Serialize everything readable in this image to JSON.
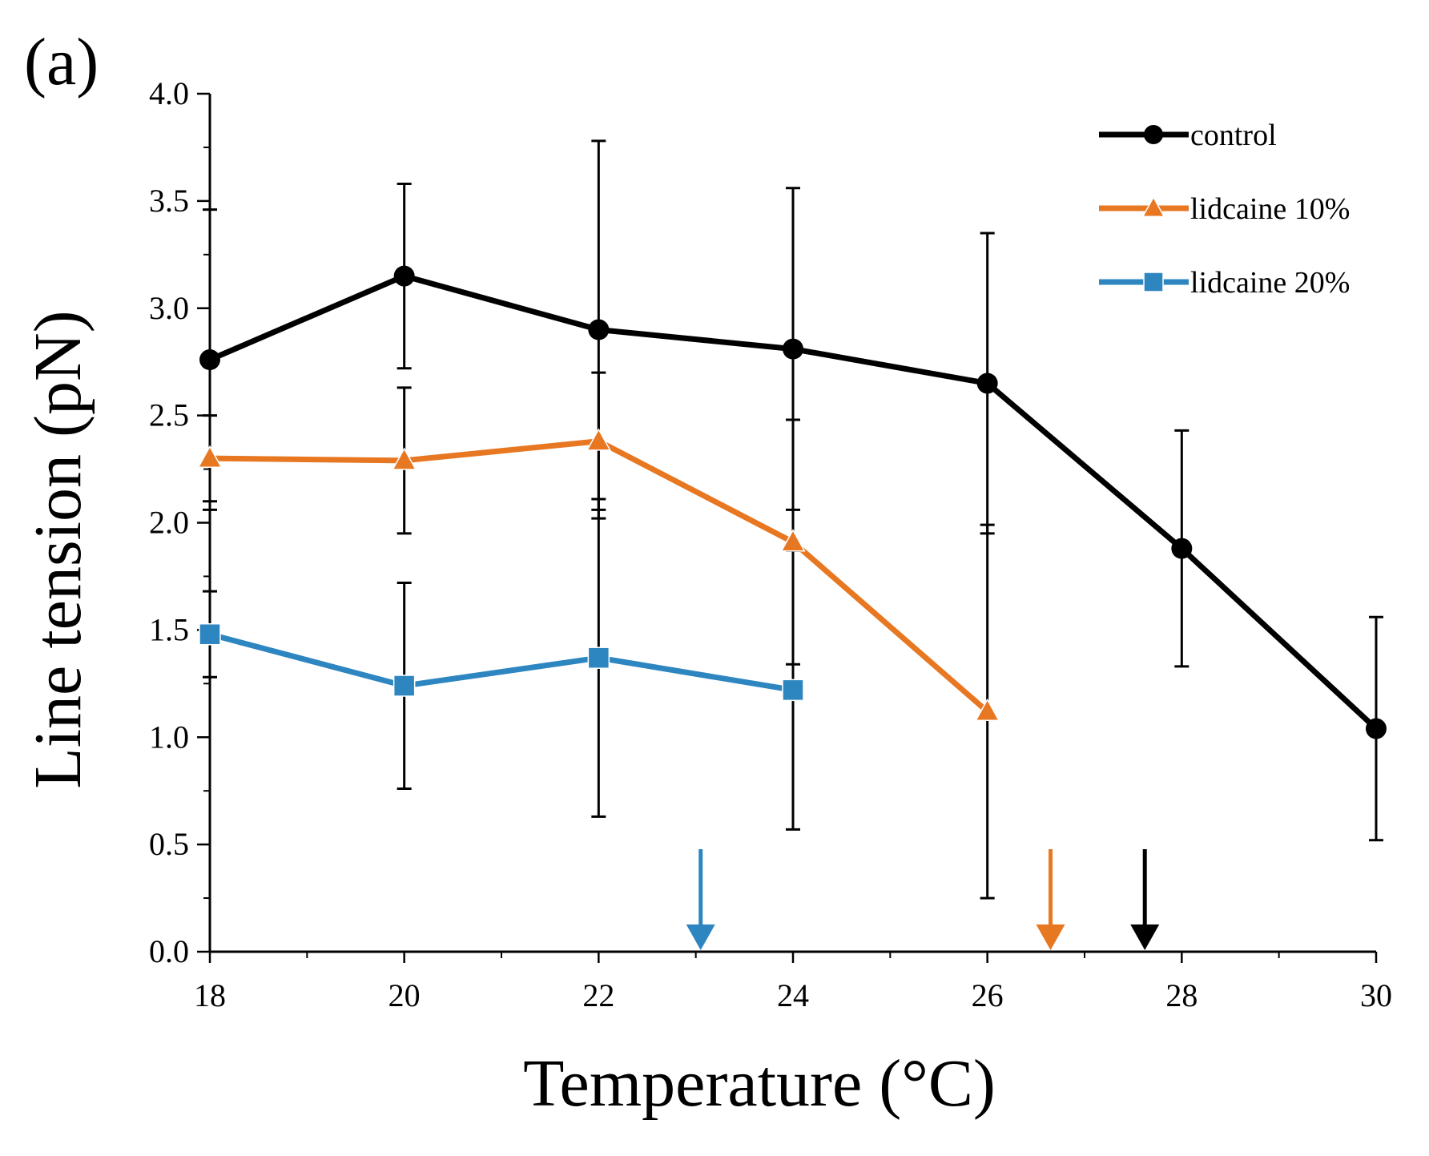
{
  "chart_data": {
    "type": "line",
    "panel_label": "(a)",
    "title": "",
    "xlabel": "Temperature (°C)",
    "ylabel": "Line tension (pN)",
    "xlim": [
      18,
      30
    ],
    "ylim": [
      0,
      4
    ],
    "x_ticks": [
      18,
      20,
      22,
      24,
      26,
      28,
      30
    ],
    "x_tick_labels": [
      "18",
      "20",
      "22",
      "24",
      "26",
      "28",
      "30"
    ],
    "y_ticks": [
      0,
      0.5,
      1,
      1.5,
      2,
      2.5,
      3,
      3.5,
      4
    ],
    "y_tick_labels": [
      "0.0",
      "0.5",
      "1.0",
      "1.5",
      "2.0",
      "2.5",
      "3.0",
      "3.5",
      "4.0"
    ],
    "grid": false,
    "legend_position": "top-right",
    "series": [
      {
        "name": "control",
        "color": "#000000",
        "marker": "circle",
        "x": [
          18,
          20,
          22,
          24,
          26,
          28,
          30
        ],
        "y": [
          2.76,
          3.15,
          2.9,
          2.81,
          2.65,
          1.88,
          1.04
        ],
        "error": [
          0.7,
          0.43,
          0.88,
          0.75,
          0.7,
          0.55,
          0.52
        ]
      },
      {
        "name": "lidcaine 10%",
        "color": "#E87722",
        "marker": "triangle",
        "x": [
          18,
          20,
          22,
          24,
          26
        ],
        "y": [
          2.3,
          2.29,
          2.38,
          1.91,
          1.12
        ],
        "error": [
          0.2,
          0.34,
          0.32,
          0.57,
          0.87
        ]
      },
      {
        "name": "lidcaine 20%",
        "color": "#2E86C1",
        "marker": "square",
        "x": [
          18,
          20,
          22,
          24
        ],
        "y": [
          1.48,
          1.24,
          1.37,
          1.22
        ],
        "error": [
          0.2,
          0.48,
          0.74,
          0.65
        ]
      }
    ],
    "annotations": [
      {
        "type": "arrow",
        "x": 23.05,
        "color": "#2E86C1",
        "points_to": "lidcaine 20%"
      },
      {
        "type": "arrow",
        "x": 26.65,
        "color": "#E87722",
        "points_to": "lidcaine 10%"
      },
      {
        "type": "arrow",
        "x": 27.62,
        "color": "#000000",
        "points_to": "control"
      }
    ]
  }
}
